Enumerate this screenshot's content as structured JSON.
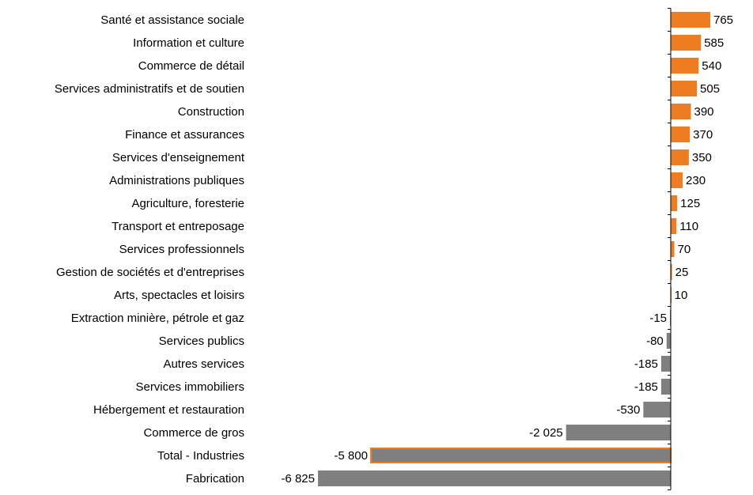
{
  "chart_data": {
    "type": "bar",
    "orientation": "horizontal",
    "title": "",
    "xlabel": "",
    "ylabel": "",
    "grid": false,
    "legend": "none",
    "categories": [
      "Santé et assistance sociale",
      "Information et culture",
      "Commerce de détail",
      "Services administratifs et de soutien",
      "Construction",
      "Finance et assurances",
      "Services d'enseignement",
      "Administrations publiques",
      "Agriculture, foresterie",
      "Transport et entreposage",
      "Services professionnels",
      "Gestion de sociétés et d'entreprises",
      "Arts, spectacles et loisirs",
      "Extraction minière, pétrole et gaz",
      "Services publics",
      "Autres services",
      "Services immobiliers",
      "Hébergement et restauration",
      "Commerce de gros",
      "Total - Industries",
      "Fabrication"
    ],
    "values": [
      765,
      585,
      540,
      505,
      390,
      370,
      350,
      230,
      125,
      110,
      70,
      25,
      10,
      -15,
      -80,
      -185,
      -185,
      -530,
      -2025,
      -5800,
      -6825
    ],
    "value_labels": [
      "765",
      "585",
      "540",
      "505",
      "390",
      "370",
      "350",
      "230",
      "125",
      "110",
      "70",
      "25",
      "10",
      "-15",
      "-80",
      "-185",
      "-185",
      "-530",
      "-2 025",
      "-5 800",
      "-6 825"
    ],
    "xlim": [
      -6825,
      765
    ],
    "highlight_category": "Total - Industries",
    "colors": {
      "positive": "#EE7D22",
      "negative": "#7F7F7F",
      "highlight_outline": "#EE7D22",
      "axis": "#000000"
    }
  }
}
